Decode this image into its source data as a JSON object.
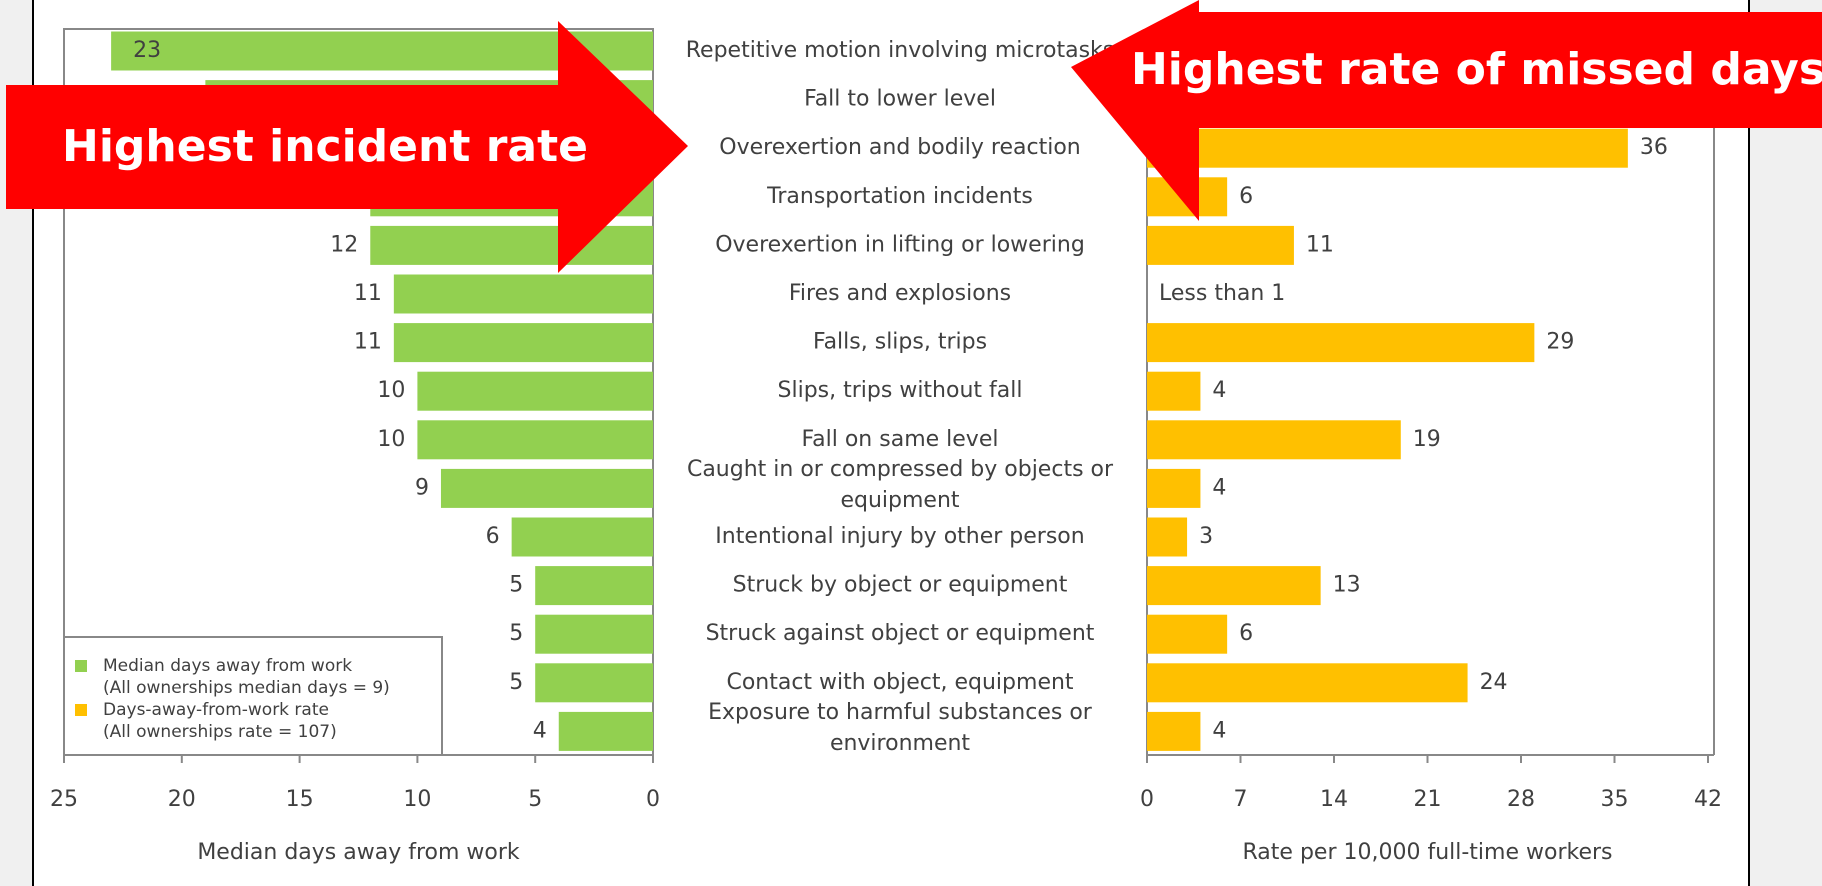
{
  "chart_data": {
    "type": "butterfly-bar",
    "categories": [
      "Repetitive motion involving microtasks",
      "Fall to lower level",
      "Overexertion and bodily reaction",
      "Transportation incidents",
      "Overexertion in lifting or lowering",
      "Fires and explosions",
      "Falls, slips, trips",
      "Slips, trips without fall",
      "Fall on same level",
      "Caught in or compressed by objects or equipment",
      "Intentional injury by other person",
      "Struck by object or equipment",
      "Struck against object or equipment",
      "Contact with object, equipment",
      "Exposure to harmful substances or environment"
    ],
    "series": [
      {
        "name": "Median days away from work",
        "note": "(All ownerships median days = 9)",
        "color": "#92d050",
        "axis": "x",
        "values": [
          23,
          19,
          12,
          12,
          12,
          11,
          11,
          10,
          10,
          9,
          6,
          5,
          5,
          5,
          4
        ]
      },
      {
        "name": "Days-away-from-work rate",
        "note": "(All ownerships rate = 107)",
        "color": "#ffc000",
        "axis": "x2",
        "values": [
          null,
          null,
          36,
          6,
          11,
          null,
          29,
          4,
          19,
          4,
          3,
          13,
          6,
          24,
          4
        ],
        "value_labels": [
          null,
          null,
          "36",
          "6",
          "11",
          "Less than 1",
          "29",
          "4",
          "19",
          "4",
          "3",
          "13",
          "6",
          "24",
          "4"
        ]
      }
    ],
    "xlim": [
      0,
      25
    ],
    "xticks": [
      0,
      5,
      10,
      15,
      20,
      25
    ],
    "x_reversed": true,
    "xlabel": "Median days away from work",
    "x2lim": [
      0,
      42
    ],
    "x2ticks": [
      0,
      7,
      14,
      21,
      28,
      35,
      42
    ],
    "x2label": "Rate per 10,000 full-time workers",
    "legend": "lower left",
    "annotations": [
      "Highest incident rate",
      "Highest rate of missed days"
    ]
  }
}
